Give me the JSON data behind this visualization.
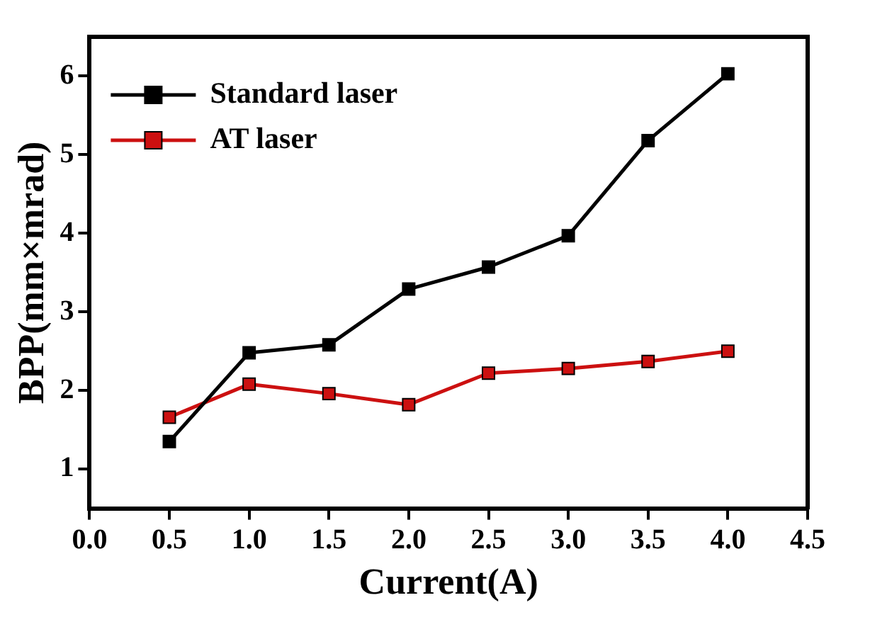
{
  "chart_data": {
    "type": "line",
    "xlabel": "Current(A)",
    "ylabel": "BPP(mm×mrad)",
    "x": [
      0.5,
      1.0,
      1.5,
      2.0,
      2.5,
      3.0,
      3.5,
      4.0
    ],
    "series": [
      {
        "name": "Standard laser",
        "color": "#000000",
        "values": [
          1.35,
          2.48,
          2.58,
          3.29,
          3.57,
          3.97,
          5.18,
          6.03
        ]
      },
      {
        "name": "AT laser",
        "color": "#cc1010",
        "values": [
          1.66,
          2.08,
          1.96,
          1.82,
          2.22,
          2.28,
          2.37,
          2.5
        ]
      }
    ],
    "xlim": [
      0,
      4.5
    ],
    "xticks": [
      {
        "value": 0,
        "label": "0.0"
      },
      0.5,
      {
        "value": 1,
        "label": "1.0"
      },
      1.5,
      {
        "value": 2,
        "label": "2.0"
      },
      2.5,
      {
        "value": 3,
        "label": "3.0"
      },
      3.5,
      {
        "value": 4,
        "label": "4.0"
      },
      4.5
    ],
    "ylim": [
      0.5,
      6.5
    ],
    "yticks": [
      1,
      2,
      3,
      4,
      5,
      6
    ],
    "grid": false,
    "legend": "top left",
    "marker": "square",
    "line_style": "solid"
  }
}
